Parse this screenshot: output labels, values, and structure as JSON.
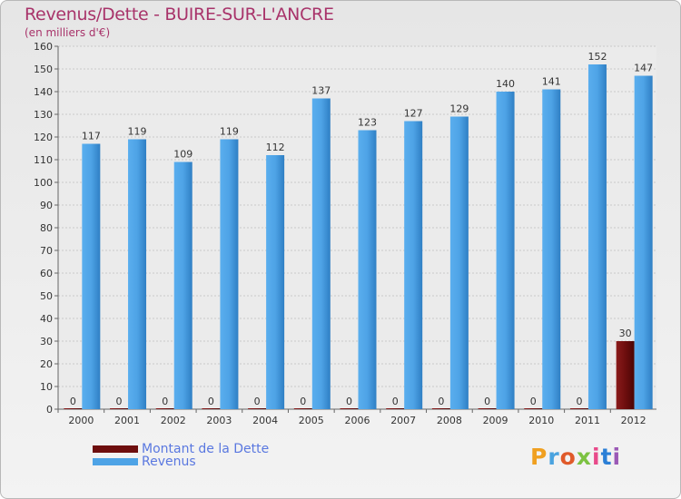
{
  "chart_data": {
    "type": "bar",
    "title": "Revenus/Dette - BUIRE-SUR-L'ANCRE",
    "subtitle": "(en milliers d'€)",
    "xlabel": "",
    "ylabel": "",
    "ylim": [
      0,
      160
    ],
    "yticks": [
      0,
      10,
      20,
      30,
      40,
      50,
      60,
      70,
      80,
      90,
      100,
      110,
      120,
      130,
      140,
      150,
      160
    ],
    "grid": true,
    "categories": [
      "2000",
      "2001",
      "2002",
      "2003",
      "2004",
      "2005",
      "2006",
      "2007",
      "2008",
      "2009",
      "2010",
      "2011",
      "2012"
    ],
    "series": [
      {
        "name": "Montant de la Dette",
        "color": "#6e0e0e",
        "values": [
          0,
          0,
          0,
          0,
          0,
          0,
          0,
          0,
          0,
          0,
          0,
          0,
          30
        ]
      },
      {
        "name": "Revenus",
        "color": "#4ea3e6",
        "values": [
          117,
          119,
          109,
          119,
          112,
          137,
          123,
          127,
          129,
          140,
          141,
          152,
          147
        ]
      }
    ],
    "legend_position": "bottom-left"
  },
  "branding": {
    "logo_text": "Proxiti",
    "logo_colors": [
      "#f0a020",
      "#4aa3df",
      "#e05a2a",
      "#7cc242",
      "#e84a8a",
      "#2b7fd6",
      "#9b59b6"
    ]
  }
}
